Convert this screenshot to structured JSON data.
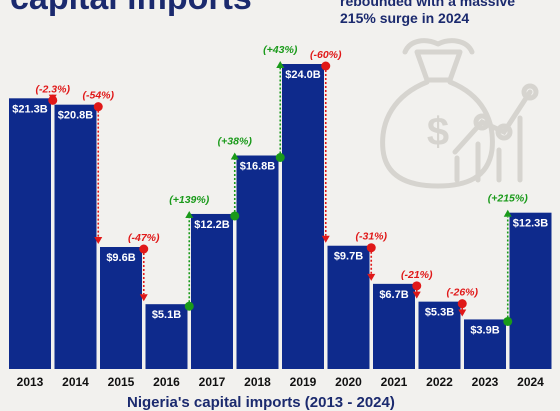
{
  "header": {
    "title": "capital imports",
    "subtitle_line1": "rebounded with a massive",
    "subtitle_line2": "215% surge in 2024"
  },
  "footer": {
    "caption": "Nigeria's capital imports (2013 - 2024)"
  },
  "colors": {
    "bar": "#0e2a8c",
    "increase": "#1a9a1a",
    "decrease": "#e01818",
    "background": "#f2f1ee",
    "text": "#1b2a6e"
  },
  "icons": [
    "money-bag-icon",
    "dollar-coin-icon",
    "trend-line-icon"
  ],
  "chart_data": {
    "type": "bar",
    "categories": [
      "2013",
      "2014",
      "2015",
      "2016",
      "2017",
      "2018",
      "2019",
      "2020",
      "2021",
      "2022",
      "2023",
      "2024"
    ],
    "values": [
      21.3,
      20.8,
      9.6,
      5.1,
      12.2,
      16.8,
      24.0,
      9.7,
      6.7,
      5.3,
      3.9,
      12.3
    ],
    "value_labels": [
      "$21.3B",
      "$20.8B",
      "$9.6B",
      "$5.1B",
      "$12.2B",
      "$16.8B",
      "$24.0B",
      "$9.7B",
      "$6.7B",
      "$5.3B",
      "$3.9B",
      "$12.3B"
    ],
    "changes": [
      "",
      "(-2.3%)",
      "(-54%)",
      "(-47%)",
      "(+139%)",
      "(+38%)",
      "(+43%)",
      "(-60%)",
      "(-31%)",
      "(-21%)",
      "(-26%)",
      "(+215%)"
    ],
    "title": "capital imports",
    "xlabel": "Nigeria's capital imports (2013 - 2024)",
    "ylabel": "",
    "ylim": [
      0,
      27.5
    ],
    "grid": false
  }
}
